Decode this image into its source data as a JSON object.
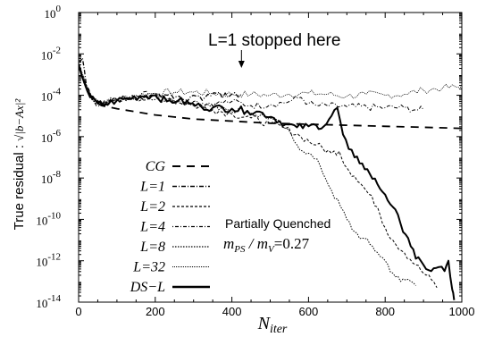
{
  "chart_data": {
    "type": "line",
    "title": "",
    "xlabel": "N",
    "xlabel_sub": "iter",
    "ylabel": "True residual : ",
    "ylabel_expr": "√|b−Ax|²",
    "xlim": [
      0,
      1000
    ],
    "ylim_log10": [
      -14,
      0
    ],
    "y_scale": "log",
    "x_ticks": [
      "0",
      "200",
      "400",
      "600",
      "800",
      "1000"
    ],
    "y_ticks": [
      {
        "base": "10",
        "exp": "0"
      },
      {
        "base": "10",
        "exp": "-2"
      },
      {
        "base": "10",
        "exp": "-4"
      },
      {
        "base": "10",
        "exp": "-6"
      },
      {
        "base": "10",
        "exp": "-8"
      },
      {
        "base": "10",
        "exp": "-10"
      },
      {
        "base": "10",
        "exp": "-12"
      },
      {
        "base": "10",
        "exp": "-14"
      }
    ],
    "legend_position": "bottom-left",
    "annotations": {
      "stopped_label": "L=1 stopped here",
      "stopped_x": 425,
      "pq_title": "Partially Quenched",
      "mass_ratio": "m",
      "mass_ps_sub": "PS",
      "mass_slash": " / m",
      "mass_v_sub": "V",
      "mass_value": "=0.27"
    },
    "series": [
      {
        "name": "CG",
        "dash": "dashed",
        "points": [
          [
            0,
            -2.6
          ],
          [
            20,
            -3.6
          ],
          [
            40,
            -4.3
          ],
          [
            60,
            -4.5
          ],
          [
            100,
            -4.65
          ],
          [
            150,
            -4.8
          ],
          [
            200,
            -4.95
          ],
          [
            250,
            -5.05
          ],
          [
            300,
            -5.15
          ],
          [
            350,
            -5.2
          ],
          [
            400,
            -5.25
          ],
          [
            450,
            -5.3
          ],
          [
            500,
            -5.35
          ],
          [
            600,
            -5.4
          ],
          [
            700,
            -5.45
          ],
          [
            800,
            -5.5
          ],
          [
            900,
            -5.55
          ],
          [
            1000,
            -5.6
          ]
        ]
      },
      {
        "name": "L=1",
        "dash": "dashdot",
        "points": [
          [
            0,
            -2.4
          ],
          [
            10,
            -2.2
          ],
          [
            20,
            -3.5
          ],
          [
            40,
            -4.2
          ],
          [
            60,
            -4.45
          ],
          [
            80,
            -4.3
          ],
          [
            100,
            -4.2
          ],
          [
            130,
            -4.15
          ],
          [
            160,
            -4.1
          ],
          [
            200,
            -4.0
          ],
          [
            240,
            -3.9
          ],
          [
            270,
            -4.2
          ],
          [
            300,
            -4.0
          ],
          [
            330,
            -4.1
          ],
          [
            360,
            -3.9
          ],
          [
            390,
            -4.1
          ],
          [
            425,
            -3.95
          ]
        ]
      },
      {
        "name": "L=2",
        "dash": "dashed-small",
        "points": [
          [
            0,
            -2.5
          ],
          [
            20,
            -3.6
          ],
          [
            40,
            -4.3
          ],
          [
            60,
            -4.45
          ],
          [
            100,
            -4.2
          ],
          [
            140,
            -4.1
          ],
          [
            180,
            -4.2
          ],
          [
            220,
            -4.0
          ],
          [
            260,
            -4.3
          ],
          [
            300,
            -4.5
          ],
          [
            350,
            -4.7
          ],
          [
            400,
            -4.9
          ],
          [
            450,
            -5.1
          ],
          [
            500,
            -5.4
          ],
          [
            540,
            -5.6
          ],
          [
            580,
            -6.0
          ],
          [
            620,
            -6.4
          ],
          [
            660,
            -6.8
          ],
          [
            680,
            -6.7
          ],
          [
            700,
            -7.5
          ],
          [
            720,
            -7.9
          ],
          [
            750,
            -8.6
          ],
          [
            780,
            -9.4
          ],
          [
            800,
            -10.4
          ],
          [
            820,
            -11.0
          ],
          [
            850,
            -11.6
          ],
          [
            880,
            -12.2
          ],
          [
            900,
            -12.6
          ],
          [
            920,
            -12.9
          ],
          [
            935,
            -13.3
          ]
        ]
      },
      {
        "name": "L=4",
        "dash": "dotted-dash",
        "points": [
          [
            0,
            -2.5
          ],
          [
            20,
            -3.6
          ],
          [
            40,
            -4.3
          ],
          [
            60,
            -4.45
          ],
          [
            100,
            -4.2
          ],
          [
            140,
            -4.0
          ],
          [
            200,
            -3.9
          ],
          [
            240,
            -4.2
          ],
          [
            300,
            -4.3
          ],
          [
            360,
            -4.4
          ],
          [
            400,
            -4.3
          ],
          [
            450,
            -4.5
          ],
          [
            500,
            -4.45
          ],
          [
            550,
            -4.3
          ],
          [
            580,
            -4.1
          ],
          [
            600,
            -4.4
          ],
          [
            620,
            -4.5
          ],
          [
            700,
            -4.55
          ],
          [
            800,
            -4.6
          ],
          [
            850,
            -4.6
          ],
          [
            880,
            -4.7
          ],
          [
            900,
            -4.7
          ]
        ]
      },
      {
        "name": "L=8",
        "dash": "dotted",
        "points": [
          [
            0,
            -2.5
          ],
          [
            20,
            -3.6
          ],
          [
            40,
            -4.3
          ],
          [
            60,
            -4.4
          ],
          [
            100,
            -4.2
          ],
          [
            150,
            -4.1
          ],
          [
            200,
            -4.2
          ],
          [
            260,
            -4.3
          ],
          [
            320,
            -4.45
          ],
          [
            380,
            -4.6
          ],
          [
            440,
            -4.8
          ],
          [
            500,
            -5.1
          ],
          [
            540,
            -5.6
          ],
          [
            570,
            -6.4
          ],
          [
            600,
            -6.8
          ],
          [
            630,
            -7.4
          ],
          [
            660,
            -8.6
          ],
          [
            700,
            -10.0
          ],
          [
            720,
            -10.6
          ],
          [
            740,
            -10.9
          ],
          [
            760,
            -11.2
          ],
          [
            780,
            -11.6
          ],
          [
            800,
            -12.0
          ],
          [
            820,
            -12.6
          ],
          [
            840,
            -13.0
          ],
          [
            860,
            -12.9
          ],
          [
            880,
            -13.2
          ]
        ]
      },
      {
        "name": "L=32",
        "dash": "fine-dotted",
        "points": [
          [
            0,
            -2.4
          ],
          [
            20,
            -3.5
          ],
          [
            40,
            -4.2
          ],
          [
            60,
            -4.4
          ],
          [
            100,
            -4.2
          ],
          [
            150,
            -4.0
          ],
          [
            200,
            -3.9
          ],
          [
            250,
            -3.85
          ],
          [
            300,
            -3.85
          ],
          [
            350,
            -3.9
          ],
          [
            400,
            -3.95
          ],
          [
            450,
            -3.95
          ],
          [
            500,
            -4.0
          ],
          [
            550,
            -3.95
          ],
          [
            600,
            -3.9
          ],
          [
            650,
            -3.95
          ],
          [
            700,
            -4.05
          ],
          [
            750,
            -3.95
          ],
          [
            800,
            -4.0
          ],
          [
            850,
            -3.95
          ],
          [
            900,
            -3.75
          ],
          [
            950,
            -3.65
          ],
          [
            1000,
            -3.6
          ]
        ]
      },
      {
        "name": "DS−L",
        "dash": "solid",
        "points": [
          [
            0,
            -2.5
          ],
          [
            15,
            -3.4
          ],
          [
            30,
            -4.1
          ],
          [
            50,
            -4.4
          ],
          [
            70,
            -4.45
          ],
          [
            100,
            -4.25
          ],
          [
            130,
            -4.15
          ],
          [
            160,
            -4.05
          ],
          [
            200,
            -4.0
          ],
          [
            230,
            -4.3
          ],
          [
            260,
            -4.25
          ],
          [
            290,
            -4.4
          ],
          [
            320,
            -4.55
          ],
          [
            350,
            -4.6
          ],
          [
            400,
            -4.65
          ],
          [
            440,
            -4.75
          ],
          [
            480,
            -4.85
          ],
          [
            510,
            -5.1
          ],
          [
            540,
            -5.4
          ],
          [
            570,
            -5.55
          ],
          [
            600,
            -5.5
          ],
          [
            620,
            -5.45
          ],
          [
            640,
            -5.5
          ],
          [
            660,
            -5.0
          ],
          [
            675,
            -4.6
          ],
          [
            690,
            -5.9
          ],
          [
            705,
            -6.6
          ],
          [
            720,
            -7.0
          ],
          [
            740,
            -7.3
          ],
          [
            760,
            -7.8
          ],
          [
            780,
            -8.3
          ],
          [
            800,
            -8.8
          ],
          [
            820,
            -9.4
          ],
          [
            840,
            -10.2
          ],
          [
            860,
            -10.9
          ],
          [
            880,
            -11.9
          ],
          [
            900,
            -12.2
          ],
          [
            920,
            -12.5
          ],
          [
            940,
            -12.3
          ],
          [
            955,
            -12.5
          ],
          [
            965,
            -12.0
          ],
          [
            975,
            -13.4
          ],
          [
            980,
            -13.9
          ]
        ]
      }
    ]
  }
}
